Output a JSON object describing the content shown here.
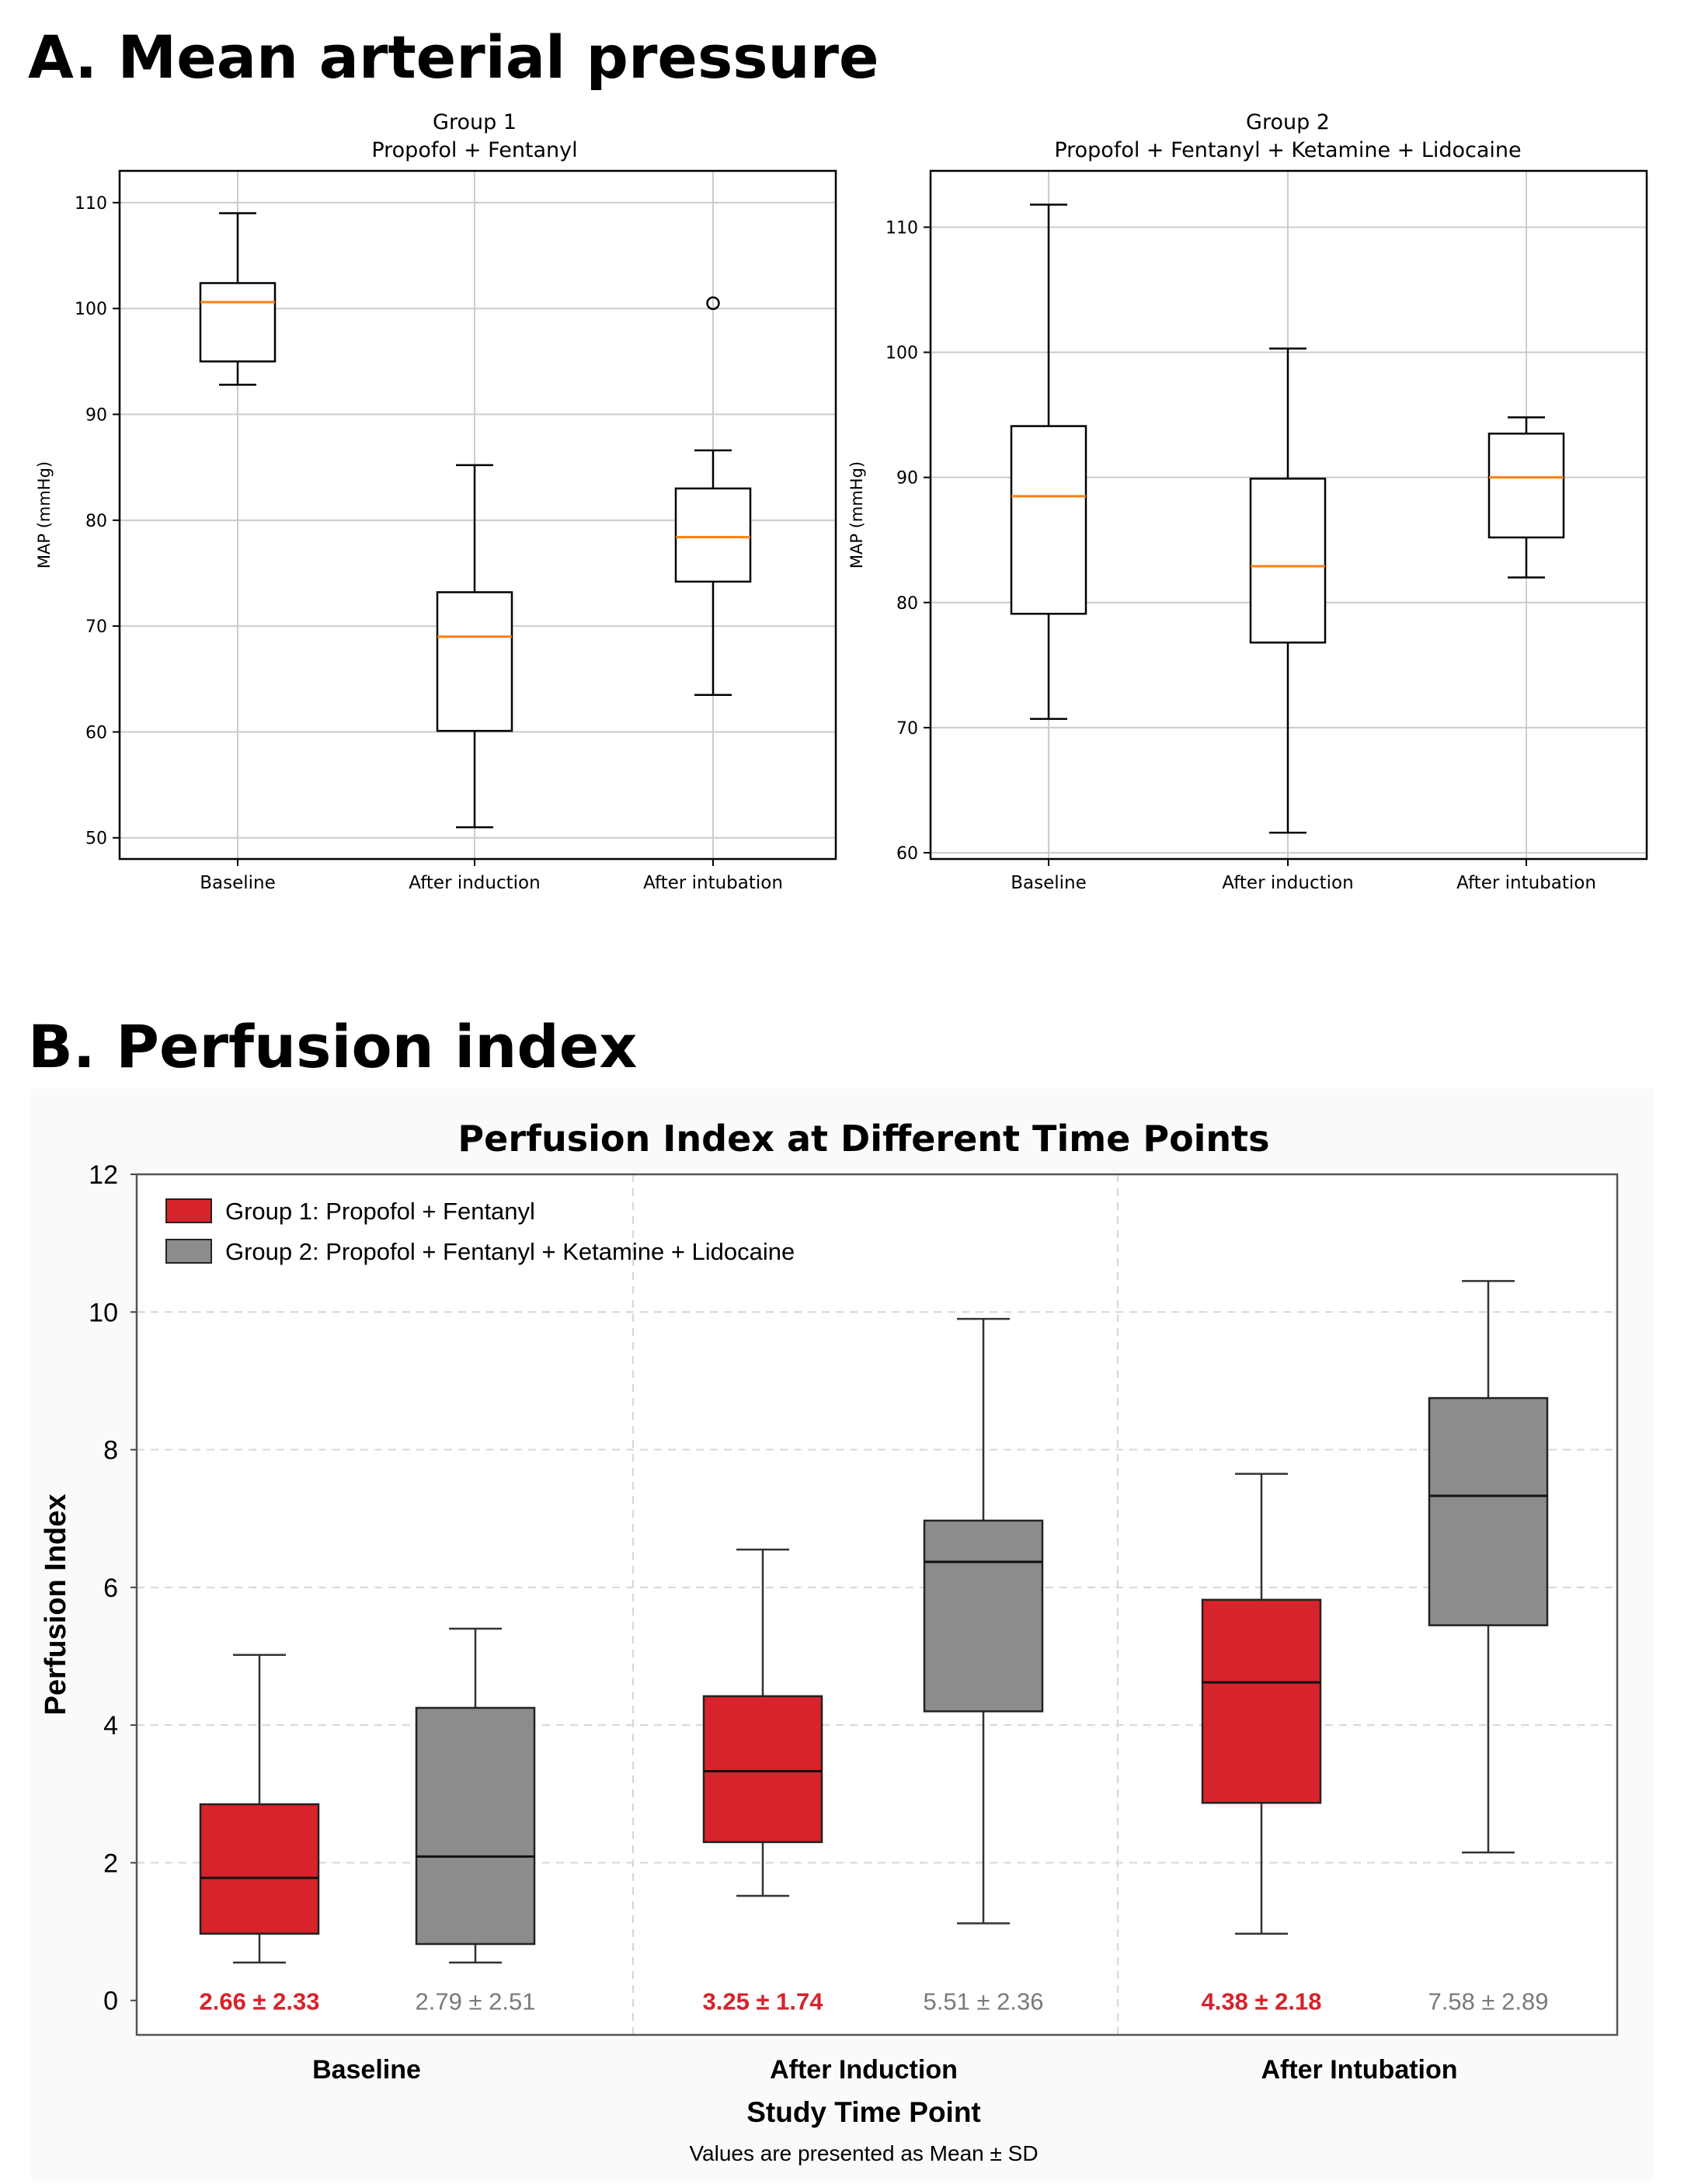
{
  "panel_a": {
    "heading": "A. Mean arterial pressure",
    "colors": {
      "box": "#000000",
      "median": "#ff7f0e",
      "grid": "#cccccc"
    },
    "charts": [
      {
        "type": "box",
        "title_line1": "Group 1",
        "title_line2": "Propofol + Fentanyl",
        "ylabel": "MAP (mmHg)",
        "ylim": [
          48,
          113
        ],
        "yticks": [
          50,
          60,
          70,
          80,
          90,
          100,
          110
        ],
        "categories": [
          "Baseline",
          "After induction",
          "After intubation"
        ],
        "boxes": [
          {
            "whisker_low": 92.8,
            "q1": 95,
            "median": 100.6,
            "q3": 102.4,
            "whisker_high": 109,
            "outliers": []
          },
          {
            "whisker_low": 51,
            "q1": 60.1,
            "median": 69,
            "q3": 73.2,
            "whisker_high": 85.2,
            "outliers": []
          },
          {
            "whisker_low": 63.5,
            "q1": 74.2,
            "median": 78.4,
            "q3": 83,
            "whisker_high": 86.6,
            "outliers": [
              100.5
            ]
          }
        ]
      },
      {
        "type": "box",
        "title_line1": "Group 2",
        "title_line2": "Propofol + Fentanyl + Ketamine + Lidocaine",
        "ylabel": "MAP (mmHg)",
        "ylim": [
          59.5,
          114.5
        ],
        "yticks": [
          60,
          70,
          80,
          90,
          100,
          110
        ],
        "categories": [
          "Baseline",
          "After induction",
          "After intubation"
        ],
        "boxes": [
          {
            "whisker_low": 70.7,
            "q1": 79.1,
            "median": 88.5,
            "q3": 94.1,
            "whisker_high": 111.8,
            "outliers": []
          },
          {
            "whisker_low": 61.6,
            "q1": 76.8,
            "median": 82.9,
            "q3": 89.9,
            "whisker_high": 100.3,
            "outliers": []
          },
          {
            "whisker_low": 82,
            "q1": 85.2,
            "median": 90,
            "q3": 93.5,
            "whisker_high": 94.8,
            "outliers": []
          }
        ]
      }
    ]
  },
  "panel_b": {
    "heading": "B. Perfusion index",
    "chart": {
      "type": "box",
      "title": "Perfusion Index at Different Time Points",
      "xlabel": "Study Time Point",
      "ylabel": "Perfusion Index",
      "footnote": "Values are presented as Mean ± SD",
      "ylim": [
        -0.5,
        12
      ],
      "yticks": [
        0,
        2,
        4,
        6,
        8,
        10,
        12
      ],
      "grid": "dashed",
      "legend_position": "top-left",
      "categories": [
        "Baseline",
        "After Induction",
        "After Intubation"
      ],
      "series": [
        {
          "name": "Group 1: Propofol + Fentanyl",
          "color": "#d7232b",
          "label_color": "#d7232b",
          "boxes": [
            {
              "whisker_low": 0.55,
              "q1": 0.97,
              "median": 1.78,
              "q3": 2.85,
              "whisker_high": 5.02
            },
            {
              "whisker_low": 1.52,
              "q1": 2.3,
              "median": 3.33,
              "q3": 4.42,
              "whisker_high": 6.55
            },
            {
              "whisker_low": 0.97,
              "q1": 2.87,
              "median": 4.62,
              "q3": 5.82,
              "whisker_high": 7.65
            }
          ],
          "mean_sd": [
            "2.66 ± 2.33",
            "3.25 ± 1.74",
            "4.38 ± 2.18"
          ]
        },
        {
          "name": "Group 2: Propofol + Fentanyl + Ketamine + Lidocaine",
          "color": "#8c8c8c",
          "label_color": "#7a7a7a",
          "boxes": [
            {
              "whisker_low": 0.55,
              "q1": 0.82,
              "median": 2.09,
              "q3": 4.25,
              "whisker_high": 5.4
            },
            {
              "whisker_low": 1.12,
              "q1": 4.2,
              "median": 6.37,
              "q3": 6.97,
              "whisker_high": 9.9
            },
            {
              "whisker_low": 2.15,
              "q1": 5.45,
              "median": 7.33,
              "q3": 8.75,
              "whisker_high": 10.45
            }
          ],
          "mean_sd": [
            "2.79 ± 2.51",
            "5.51 ± 2.36",
            "7.58 ± 2.89"
          ]
        }
      ]
    }
  }
}
